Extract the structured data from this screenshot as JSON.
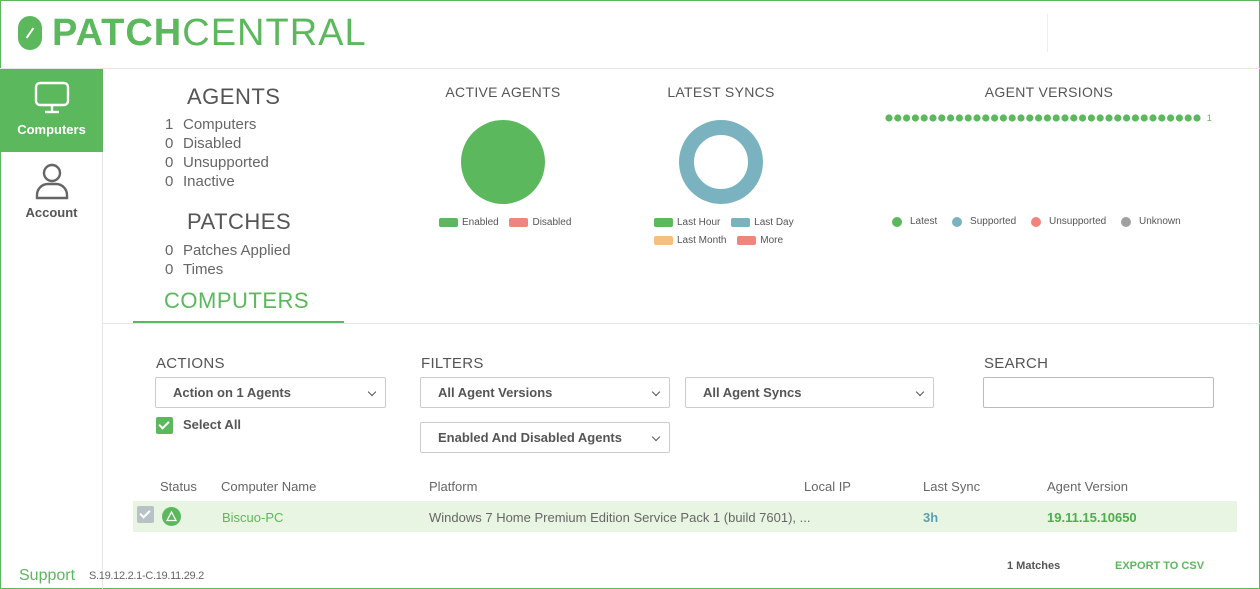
{
  "brand": {
    "name_bold": "PATCH",
    "name_light": "CENTRAL",
    "accent": "#5cb85c"
  },
  "sidebar": {
    "items": [
      {
        "label": "Computers",
        "icon": "monitor-icon",
        "active": true
      },
      {
        "label": "Account",
        "icon": "user-icon",
        "active": false
      }
    ]
  },
  "agents": {
    "title": "AGENTS",
    "rows": [
      {
        "count": "1",
        "label": "Computers"
      },
      {
        "count": "0",
        "label": "Disabled"
      },
      {
        "count": "0",
        "label": "Unsupported"
      },
      {
        "count": "0",
        "label": "Inactive"
      }
    ]
  },
  "patches": {
    "title": "PATCHES",
    "rows": [
      {
        "count": "0",
        "label": "Patches Applied"
      },
      {
        "count": "0",
        "label": "Times"
      }
    ]
  },
  "chart_data": [
    {
      "type": "pie",
      "title": "ACTIVE AGENTS",
      "categories": [
        "Enabled",
        "Disabled"
      ],
      "values": [
        1,
        0
      ],
      "colors": [
        "#5cb85c",
        "#f0857d"
      ],
      "legend": "bottom"
    },
    {
      "type": "pie",
      "title": "LATEST SYNCS",
      "categories": [
        "Last Hour",
        "Last Day",
        "Last Month",
        "More"
      ],
      "values": [
        0,
        1,
        0,
        0
      ],
      "colors": [
        "#5cb85c",
        "#7ab3bf",
        "#f5c07f",
        "#f0857d"
      ],
      "legend": "bottom"
    },
    {
      "type": "bar",
      "title": "AGENT VERSIONS",
      "categories": [
        "Latest",
        "Supported",
        "Unsupported",
        "Unknown"
      ],
      "values": [
        1,
        0,
        0,
        0
      ],
      "value_label": "1",
      "colors": [
        "#5cb85c",
        "#7ab3bf",
        "#f0857d",
        "#a0a0a0"
      ],
      "legend": "bottom"
    }
  ],
  "computers_tab": {
    "label": "COMPUTERS"
  },
  "actions": {
    "label": "ACTIONS",
    "select_value": "Action on 1 Agents",
    "select_all_label": "Select All"
  },
  "filters": {
    "label": "FILTERS",
    "versions": "All Agent Versions",
    "syncs": "All Agent Syncs",
    "enabled": "Enabled And Disabled Agents"
  },
  "search": {
    "label": "SEARCH",
    "value": ""
  },
  "table": {
    "columns": [
      "Status",
      "Computer Name",
      "Platform",
      "Local IP",
      "Last Sync",
      "Agent Version"
    ],
    "rows": [
      {
        "computer_name": "Biscuo-PC",
        "platform": "Windows 7 Home Premium Edition Service Pack 1 (build 7601), ...",
        "local_ip": "",
        "last_sync": "3h",
        "agent_version": "19.11.15.10650"
      }
    ]
  },
  "footer": {
    "matches": "1 Matches",
    "export": "EXPORT TO CSV",
    "support": "Support",
    "version": "S.19.12.2.1-C.19.11.29.2"
  }
}
